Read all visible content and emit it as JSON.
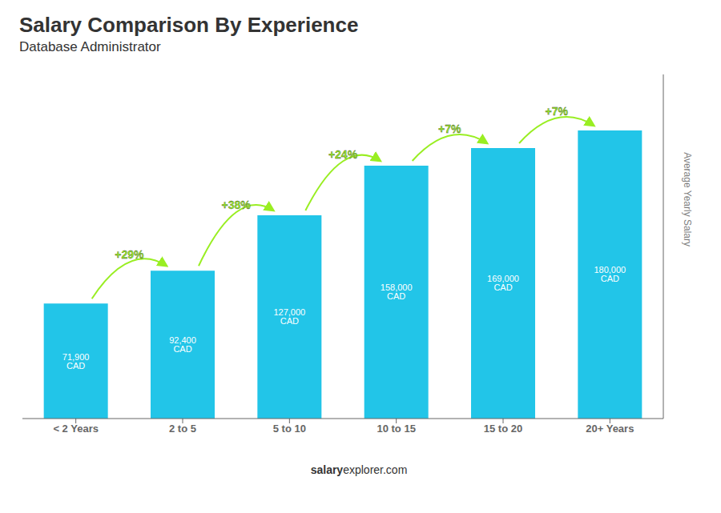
{
  "chart_data": {
    "type": "bar",
    "title": "Salary Comparison By Experience",
    "subtitle": "Database Administrator",
    "categories": [
      "< 2 Years",
      "2 to 5",
      "5 to 10",
      "10 to 15",
      "15 to 20",
      "20+ Years"
    ],
    "values": [
      71900,
      92400,
      127000,
      158000,
      169000,
      180000
    ],
    "value_labels": [
      "71,900 CAD",
      "92,400 CAD",
      "127,000 CAD",
      "158,000 CAD",
      "169,000 CAD",
      "180,000 CAD"
    ],
    "data_labels": true,
    "color": "#22c5e8",
    "y_label": "Average Yearly Salary",
    "ylim": [
      0,
      215000
    ],
    "tick_labels": "x",
    "grid": false,
    "annotations": [
      {
        "text": "+29%",
        "color": "#99ee22"
      },
      {
        "text": "+38%",
        "color": "#99ee22"
      },
      {
        "text": "+24%",
        "color": "#99ee22"
      },
      {
        "text": "+7%",
        "color": "#99ee22"
      },
      {
        "text": "+7%",
        "color": "#99ee22"
      }
    ],
    "footer": [
      "salary",
      "explorer.com"
    ]
  }
}
